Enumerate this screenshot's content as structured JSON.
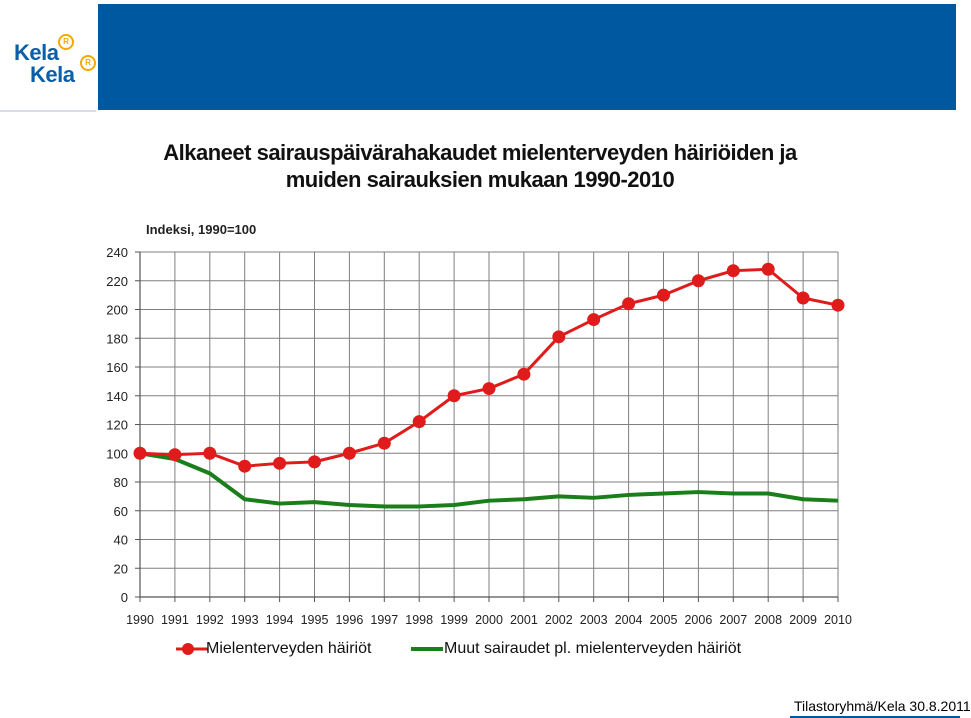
{
  "header": {
    "logo_top": "Kela",
    "logo_bottom": "Kela",
    "logo_mark": "R"
  },
  "colors": {
    "header_blue": "#0059a0",
    "series_red": "#e01b1b",
    "series_green": "#1a7f1a",
    "grid": "#7f7f7f"
  },
  "chart_data": {
    "type": "line",
    "title": "Alkaneet sairauspäivärahakaudet mielenterveyden häiriöiden ja muiden sairauksien mukaan 1990-2010",
    "title_line1": "Alkaneet sairauspäivärahakaudet mielenterveyden häiriöiden ja",
    "title_line2": "muiden sairauksien mukaan 1990-2010",
    "ylabel": "Indeksi, 1990=100",
    "xlabel": "",
    "ylim": [
      0,
      240
    ],
    "yticks": [
      0,
      20,
      40,
      60,
      80,
      100,
      120,
      140,
      160,
      180,
      200,
      220,
      240
    ],
    "grid": true,
    "legend_position": "bottom",
    "x": [
      "1990",
      "1991",
      "1992",
      "1993",
      "1994",
      "1995",
      "1996",
      "1997",
      "1998",
      "1999",
      "2000",
      "2001",
      "2002",
      "2003",
      "2004",
      "2005",
      "2006",
      "2007",
      "2008",
      "2009",
      "2010"
    ],
    "series": [
      {
        "name": "Mielenterveyden häiriöt",
        "color": "#e01b1b",
        "marker": "circle",
        "values": [
          100,
          99,
          100,
          91,
          93,
          94,
          100,
          107,
          122,
          140,
          145,
          155,
          181,
          193,
          204,
          210,
          220,
          227,
          228,
          208,
          203
        ]
      },
      {
        "name": "Muut sairaudet pl. mielenterveyden häiriöt",
        "color": "#1a7f1a",
        "marker": "none",
        "values": [
          100,
          96,
          86,
          68,
          65,
          66,
          64,
          63,
          63,
          64,
          67,
          68,
          70,
          69,
          71,
          72,
          73,
          72,
          72,
          68,
          67
        ]
      }
    ]
  },
  "footer": {
    "source": "Tilastoryhmä/Kela 30.8.2011"
  }
}
